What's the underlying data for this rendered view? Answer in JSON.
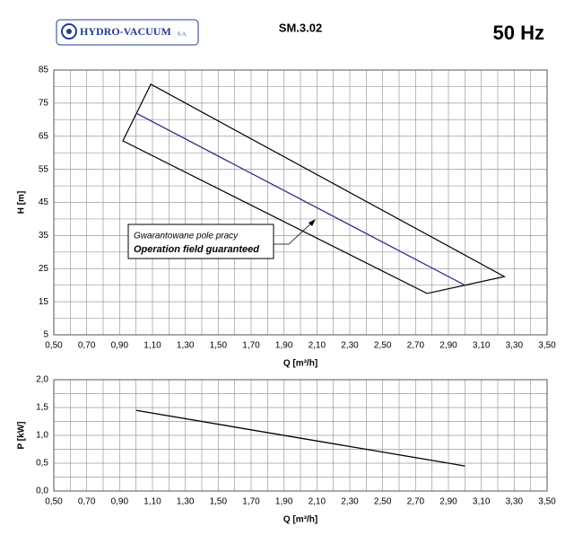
{
  "header": {
    "logo": "HYDRO-VACUUM",
    "logo_suffix": "S.A.",
    "model": "SM.3.02",
    "frequency": "50 Hz"
  },
  "chart_data": [
    {
      "type": "line",
      "x_label": "Q [m³/h]",
      "y_label": "H [m]",
      "xlim": [
        0.5,
        3.5
      ],
      "ylim": [
        5,
        85
      ],
      "xticks": [
        {
          "value": 0.5,
          "label": "0,50"
        },
        {
          "value": 0.7,
          "label": "0,70"
        },
        {
          "value": 0.9,
          "label": "0,90"
        },
        {
          "value": 1.1,
          "label": "1,10"
        },
        {
          "value": 1.3,
          "label": "1,30"
        },
        {
          "value": 1.5,
          "label": "1,50"
        },
        {
          "value": 1.7,
          "label": "1,70"
        },
        {
          "value": 1.9,
          "label": "1,90"
        },
        {
          "value": 2.1,
          "label": "2,10"
        },
        {
          "value": 2.3,
          "label": "2,30"
        },
        {
          "value": 2.5,
          "label": "2,50"
        },
        {
          "value": 2.7,
          "label": "2,70"
        },
        {
          "value": 2.9,
          "label": "2,90"
        },
        {
          "value": 3.1,
          "label": "3,10"
        },
        {
          "value": 3.3,
          "label": "3,30"
        },
        {
          "value": 3.5,
          "label": "3,50"
        }
      ],
      "minor_xticks": [
        0.6,
        0.8,
        1.0,
        1.2,
        1.4,
        1.6,
        1.8,
        2.0,
        2.2,
        2.4,
        2.6,
        2.8,
        3.0,
        3.2,
        3.4
      ],
      "yticks": [
        5,
        15,
        25,
        35,
        45,
        55,
        65,
        75,
        85
      ],
      "minor_yticks": [
        10,
        20,
        30,
        40,
        50,
        60,
        70,
        80
      ],
      "grid": true,
      "series": [
        {
          "color": "#2b2f8a",
          "x": [
            1.0,
            3.0
          ],
          "values": [
            72,
            20
          ]
        }
      ],
      "envelope": {
        "color": "#000000",
        "x": [
          0.92,
          1.09,
          3.24,
          2.77
        ],
        "values": [
          63.6,
          80.7,
          22.6,
          17.5
        ]
      },
      "annotations": [
        "Gwarantowane pole pracy",
        "Operation field guaranteed"
      ]
    },
    {
      "type": "line",
      "x_label": "Q [m³/h]",
      "y_label": "P [kW]",
      "xlim": [
        0.5,
        3.5
      ],
      "ylim": [
        0,
        2
      ],
      "xticks": [
        {
          "value": 0.5,
          "label": "0,50"
        },
        {
          "value": 0.7,
          "label": "0,70"
        },
        {
          "value": 0.9,
          "label": "0,90"
        },
        {
          "value": 1.1,
          "label": "1,10"
        },
        {
          "value": 1.3,
          "label": "1,30"
        },
        {
          "value": 1.5,
          "label": "1,50"
        },
        {
          "value": 1.7,
          "label": "1,70"
        },
        {
          "value": 1.9,
          "label": "1,90"
        },
        {
          "value": 2.1,
          "label": "2,10"
        },
        {
          "value": 2.3,
          "label": "2,30"
        },
        {
          "value": 2.5,
          "label": "2,50"
        },
        {
          "value": 2.7,
          "label": "2,70"
        },
        {
          "value": 2.9,
          "label": "2,90"
        },
        {
          "value": 3.1,
          "label": "3,10"
        },
        {
          "value": 3.3,
          "label": "3,30"
        },
        {
          "value": 3.5,
          "label": "3,50"
        }
      ],
      "minor_xticks": [
        0.6,
        0.8,
        1.0,
        1.2,
        1.4,
        1.6,
        1.8,
        2.0,
        2.2,
        2.4,
        2.6,
        2.8,
        3.0,
        3.2,
        3.4
      ],
      "yticks": [
        {
          "value": 0,
          "label": "0,0"
        },
        {
          "value": 0.5,
          "label": "0,5"
        },
        {
          "value": 1,
          "label": "1,0"
        },
        {
          "value": 1.5,
          "label": "1,5"
        },
        {
          "value": 2,
          "label": "2,0"
        }
      ],
      "minor_yticks": [
        0.25,
        0.75,
        1.25,
        1.75
      ],
      "grid": true,
      "series": [
        {
          "color": "#000000",
          "x": [
            1.0,
            3.0
          ],
          "values": [
            1.45,
            0.45
          ]
        }
      ]
    }
  ]
}
